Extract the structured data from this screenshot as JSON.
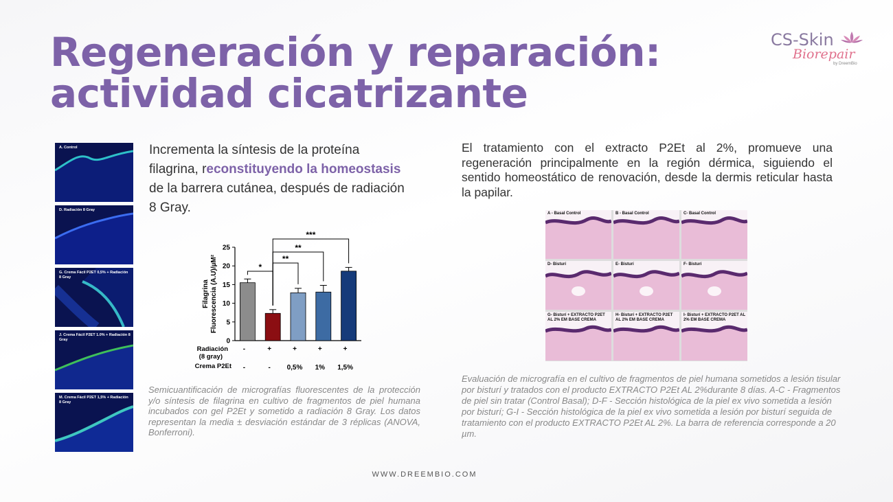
{
  "title": {
    "line1": "Regeneración y reparación:",
    "line2": "actividad cicatrizante"
  },
  "logo": {
    "line1": "CS-Skin",
    "line2": "Biorepair",
    "by": "by DreemBio"
  },
  "micrographs": [
    {
      "label": "A. Control"
    },
    {
      "label": "D. Radiación 8 Gray"
    },
    {
      "label": "G. Crema Fácil P2ET 0,5% + Radiación 8 Gray"
    },
    {
      "label": "J. Crema Fácil P2ET 1.0% + Radiación 8 Gray"
    },
    {
      "label": "M. Crema Fácil P2ET 1,5% + Radiación 8 Gray"
    }
  ],
  "intro": {
    "part1": "Incrementa la síntesis de la proteína filagrina, r",
    "bold": "econstituyendo la homeostasis",
    "part2": " de la barrera cutánea, después de radiación 8 Gray."
  },
  "chart_data": {
    "type": "bar",
    "ylabel": "Filagrina Fluorescencia (A.U)/µM²",
    "ylim": [
      0,
      25
    ],
    "yticks": [
      0,
      5,
      10,
      15,
      20,
      25
    ],
    "categories": [
      "1",
      "2",
      "3",
      "4",
      "5"
    ],
    "values": [
      15.5,
      7.3,
      12.8,
      13.0,
      18.6
    ],
    "errors": [
      1.0,
      1.0,
      1.2,
      1.8,
      1.0
    ],
    "colors": [
      "#8c8c8c",
      "#8b0e12",
      "#7f9ec4",
      "#3d6ba3",
      "#163b7a"
    ],
    "row_labels": [
      "Radiación (8 gray)",
      "Crema P2Et"
    ],
    "radiacion": [
      "-",
      "+",
      "+",
      "+",
      "+"
    ],
    "crema": [
      "-",
      "-",
      "0,5%",
      "1%",
      "1,5%"
    ],
    "significance": [
      {
        "from": 0,
        "to": 1,
        "label": "*"
      },
      {
        "from": 1,
        "to": 2,
        "label": "**"
      },
      {
        "from": 1,
        "to": 3,
        "label": "**"
      },
      {
        "from": 1,
        "to": 4,
        "label": "***"
      }
    ]
  },
  "caption_left": "Semicuantificación de micrografías fluorescentes de la protección y/o síntesis de filagrina en cultivo de fragmentos de piel humana incubados con gel P2Et y sometido a radiación 8 Gray. Los datos representan la media ± desviación estándar de 3 réplicas (ANOVA, Bonferroni).",
  "right_text": "El tratamiento con el extracto P2Et al 2%, promueve una regeneración principalmente en la región dérmica, siguiendo el sentido homeostático de renovación, desde la dermis reticular hasta la papilar.",
  "histology": [
    {
      "label": "A - Basal Control"
    },
    {
      "label": "B - Basal Control"
    },
    {
      "label": "C- Basal Control"
    },
    {
      "label": "D- Bisturí"
    },
    {
      "label": "E- Bisturí"
    },
    {
      "label": "F- Bisturí"
    },
    {
      "label": "G- Bisturí + EXTRACTO P2ET AL 2% EM BASE CREMA"
    },
    {
      "label": "H- Bisturí + EXTRACTO P2ET AL 2% EM BASE CREMA"
    },
    {
      "label": "I- Bisturí + EXTRACTO P2ET AL 2% EM BASE CREMA"
    }
  ],
  "caption_right": "Evaluación de micrografía en el cultivo de fragmentos de piel humana sometidos a lesión tisular por bisturí y tratados con el producto EXTRACTO P2Et AL 2%durante 8 días. A-C - Fragmentos de piel sin tratar (Control Basal); D-F - Sección histológica de la piel ex vivo sometida a lesión por bisturí; G-I - Sección histológica de la piel ex vivo sometida a lesión por bisturí seguida de tratamiento con el producto EXTRACTO P2Et AL 2%. La barra de referencia corresponde a 20 µm.",
  "footer": "WWW.DREEMBIO.COM"
}
